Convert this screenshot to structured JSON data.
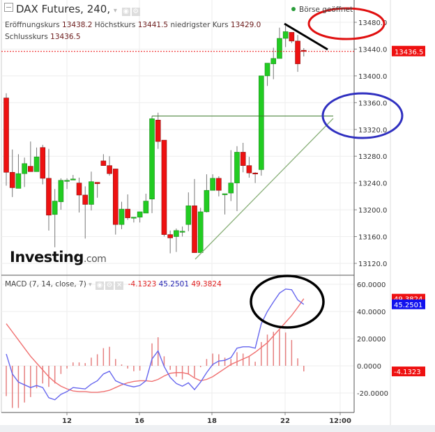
{
  "header": {
    "title": "DAX Futures, 240,",
    "status": "Börse geöffnet",
    "status_color": "#2a9d3a"
  },
  "ohlc": {
    "open_label": "Eröffnungskurs",
    "open": "13438.2",
    "high_label": "Höchstkurs",
    "high": "13441.5",
    "low_label": "niedrigster Kurs",
    "low": "13429.0",
    "close_label": "Schlusskurs",
    "close": "13436.5"
  },
  "logo": {
    "text": "Investing",
    "suffix": ".com"
  },
  "macd_header": {
    "label": "MACD (7, 14, close, 7)",
    "hist": "-4.1323",
    "macd": "45.2501",
    "signal": "49.3824"
  },
  "colors": {
    "up": "#22cc22",
    "down": "#ee1111",
    "macd": "#6666ee",
    "signal": "#f07070",
    "hist": "#e06060",
    "last_price": "#ee1111"
  },
  "chart_data": [
    {
      "type": "candlestick",
      "ylim": [
        13100,
        13500
      ],
      "y_ticks": [
        "13480.0",
        "13440.0",
        "13400.0",
        "13360.0",
        "13320.0",
        "13280.0",
        "13240.0",
        "13200.0",
        "13160.0",
        "13120.0"
      ],
      "x_ticks": [
        "12",
        "16",
        "18",
        "22",
        "12:00"
      ],
      "last_price_label": "13436.5",
      "ohlc": [
        [
          13367,
          13374,
          13236,
          13256
        ],
        [
          13256,
          13290,
          13219,
          13233
        ],
        [
          13232,
          13283,
          13232,
          13254
        ],
        [
          13254,
          13278,
          13234,
          13269
        ],
        [
          13265,
          13302,
          13257,
          13257
        ],
        [
          13257,
          13293,
          13257,
          13279
        ],
        [
          13293,
          13297,
          13238,
          13247
        ],
        [
          13247,
          13291,
          13169,
          13192
        ],
        [
          13193,
          13231,
          13144,
          13213
        ],
        [
          13212,
          13247,
          13200,
          13244
        ],
        [
          13243,
          13247,
          13231,
          13244
        ],
        [
          13245,
          13252,
          13245,
          13246
        ],
        [
          13240,
          13248,
          13196,
          13222
        ],
        [
          13222,
          13235,
          13157,
          13208
        ],
        [
          13208,
          13257,
          13199,
          13242
        ],
        [
          13241,
          13241,
          13218,
          13239
        ],
        [
          13273,
          13283,
          13266,
          13266
        ],
        [
          13266,
          13280,
          13251,
          13254
        ],
        [
          13261,
          13261,
          13163,
          13178
        ],
        [
          13178,
          13212,
          13171,
          13201
        ],
        [
          13201,
          13223,
          13185,
          13188
        ],
        [
          13188,
          13189,
          13181,
          13189
        ],
        [
          13189,
          13197,
          13181,
          13197
        ],
        [
          13195,
          13224,
          13195,
          13213
        ],
        [
          13216,
          13340,
          13195,
          13336
        ],
        [
          13334,
          13345,
          13291,
          13302
        ],
        [
          13304,
          13304,
          13160,
          13163
        ],
        [
          13163,
          13169,
          13135,
          13158
        ],
        [
          13160,
          13172,
          13137,
          13169
        ],
        [
          13168,
          13175,
          13160,
          13168
        ],
        [
          13178,
          13226,
          13168,
          13206
        ],
        [
          13206,
          13246,
          13136,
          13136
        ],
        [
          13136,
          13203,
          13136,
          13197
        ],
        [
          13197,
          13253,
          13196,
          13229
        ],
        [
          13229,
          13253,
          13229,
          13247
        ],
        [
          13247,
          13250,
          13220,
          13229
        ],
        [
          13224,
          13224,
          13193,
          13224
        ],
        [
          13225,
          13289,
          13213,
          13240
        ],
        [
          13240,
          13295,
          13198,
          13286
        ],
        [
          13286,
          13300,
          13256,
          13266
        ],
        [
          13266,
          13279,
          13248,
          13255
        ],
        [
          13255,
          13256,
          13240,
          13254
        ],
        [
          13260,
          13400,
          13251,
          13400
        ],
        [
          13400,
          13419,
          13385,
          13419
        ],
        [
          13418,
          13442,
          13395,
          13426
        ],
        [
          13426,
          13472,
          13426,
          13456
        ],
        [
          13456,
          13475,
          13443,
          13466
        ],
        [
          13465,
          13465,
          13449,
          13452
        ],
        [
          13452,
          13461,
          13406,
          13418
        ],
        [
          13438.2,
          13441.5,
          13429.0,
          13436.5
        ]
      ],
      "annotations": {
        "resistance": 13340,
        "trendline": "rising support",
        "ellipses": [
          "red",
          "blue"
        ],
        "black_line": "falling"
      }
    },
    {
      "type": "line",
      "ylim": [
        -30,
        65
      ],
      "y_ticks": [
        "60.0000",
        "40.0000",
        "20.0000",
        "0.0000",
        "-20.0000"
      ],
      "series": [
        {
          "values": [
            8.7,
            -6,
            -12,
            -14,
            -16,
            -14.5,
            -16,
            -23.5,
            -25,
            -21,
            -19,
            -16,
            -16.5,
            -17,
            -13.5,
            -11,
            -6,
            -4,
            -11,
            -13,
            -14.5,
            -15.5,
            -14.5,
            -11,
            5,
            11,
            -0.5,
            -8.5,
            -13,
            -15,
            -12.5,
            -17.5,
            -12,
            -5,
            1,
            3.5,
            4,
            6,
            13,
            14,
            14,
            13,
            31,
            40,
            47,
            53.5,
            56.5,
            56,
            48.5,
            45.25
          ]
        },
        {
          "values": [
            31,
            25,
            19,
            13,
            7,
            2,
            -3,
            -8,
            -12,
            -15,
            -17,
            -18.5,
            -19,
            -19,
            -19.5,
            -19.5,
            -19,
            -18,
            -16,
            -14,
            -12.5,
            -11.5,
            -11,
            -11,
            -11.5,
            -10,
            -7.5,
            -5.5,
            -5,
            -5,
            -6,
            -9,
            -11,
            -10,
            -8,
            -5,
            -2,
            1,
            3,
            5,
            7,
            10,
            13.5,
            17,
            22,
            27,
            32,
            37,
            43,
            49.38
          ]
        }
      ],
      "labels": {
        "macd": "45.2501",
        "signal": "49.3824",
        "hist": "-4.1323"
      }
    }
  ]
}
